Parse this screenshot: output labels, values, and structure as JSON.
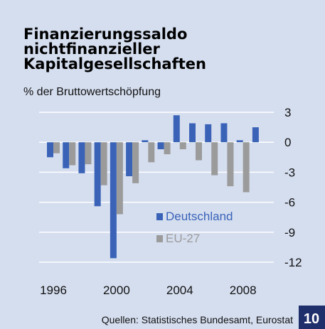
{
  "chart_data": {
    "type": "bar",
    "title": [
      "Finanzierungssaldo",
      "nichtfinanzieller",
      "Kapitalgesellschaften"
    ],
    "subtitle": "% der Bruttowertschöpfung",
    "x": [
      1996,
      1997,
      1998,
      1999,
      2000,
      2001,
      2002,
      2003,
      2004,
      2005,
      2006,
      2007,
      2008,
      2009
    ],
    "series": [
      {
        "name": "Deutschland",
        "color": "#3a63b8",
        "values": [
          -1.5,
          -2.6,
          -3.1,
          -6.4,
          -11.6,
          -3.4,
          0.2,
          -0.7,
          2.7,
          1.9,
          1.8,
          1.9,
          0.2,
          1.5
        ]
      },
      {
        "name": "EU-27",
        "color": "#9b9b9b",
        "values": [
          -1.1,
          -2.3,
          -2.2,
          -4.3,
          -7.2,
          -4.1,
          -2.0,
          -1.2,
          -0.7,
          -1.8,
          -3.3,
          -4.4,
          -5.0,
          null
        ]
      }
    ],
    "xlim": [
      1995.1,
      2009.95
    ],
    "xticks": [
      1996,
      2000,
      2004,
      2008
    ],
    "ylim": [
      -12,
      3
    ],
    "yticks": [
      3,
      0,
      -3,
      -6,
      -9,
      -12
    ],
    "grid": true,
    "source": "Quellen: Statistisches Bundesamt, Eurostat",
    "page_number": "10"
  }
}
